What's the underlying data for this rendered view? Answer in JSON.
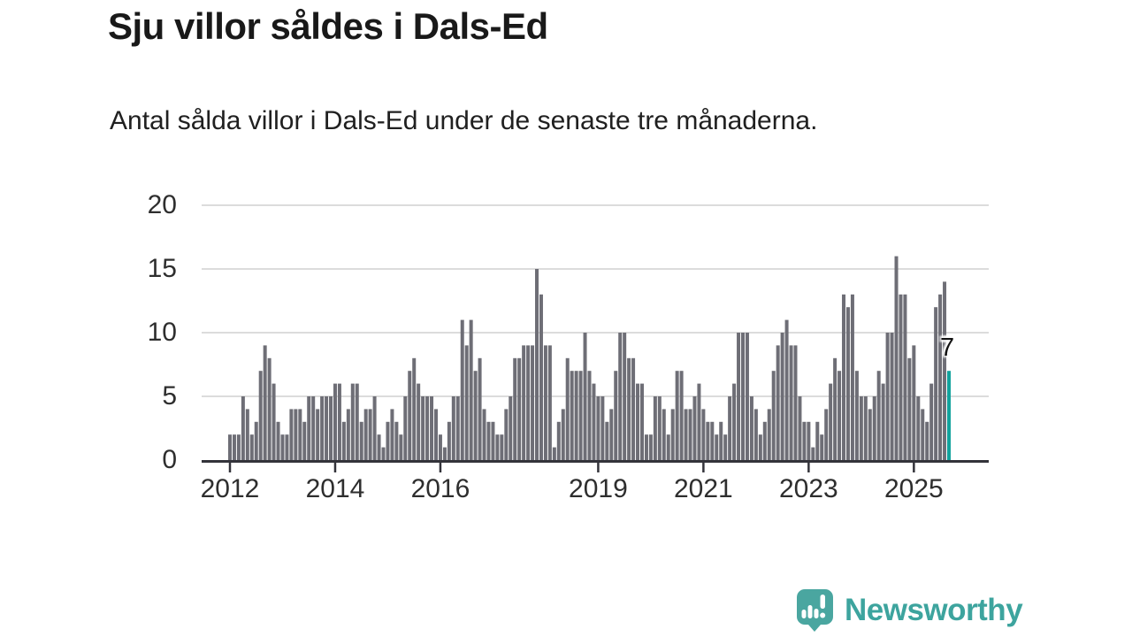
{
  "header": {
    "title": "Sju villor såldes i Dals-Ed",
    "subtitle": "Antal sålda villor i Dals-Ed under de senaste tre månaderna."
  },
  "chart_data": {
    "type": "bar",
    "title": "Sju villor såldes i Dals-Ed",
    "subtitle": "Antal sålda villor i Dals-Ed under de senaste tre månaderna.",
    "x_start": "2012-01",
    "x_end": "2025-09",
    "x_unit": "month",
    "values": [
      2,
      2,
      2,
      5,
      4,
      2,
      3,
      7,
      9,
      8,
      6,
      3,
      2,
      2,
      4,
      4,
      4,
      3,
      5,
      5,
      4,
      5,
      5,
      5,
      6,
      6,
      3,
      4,
      6,
      6,
      3,
      4,
      4,
      5,
      2,
      1,
      3,
      4,
      3,
      2,
      5,
      7,
      8,
      6,
      5,
      5,
      5,
      4,
      2,
      1,
      3,
      5,
      5,
      11,
      9,
      11,
      7,
      8,
      4,
      3,
      3,
      2,
      2,
      4,
      5,
      8,
      8,
      9,
      9,
      9,
      15,
      13,
      9,
      9,
      1,
      3,
      4,
      8,
      7,
      7,
      7,
      10,
      7,
      6,
      5,
      5,
      3,
      4,
      7,
      10,
      10,
      8,
      8,
      6,
      6,
      2,
      2,
      5,
      5,
      4,
      2,
      4,
      7,
      7,
      4,
      4,
      5,
      6,
      4,
      3,
      3,
      2,
      3,
      2,
      5,
      6,
      10,
      10,
      10,
      5,
      4,
      2,
      3,
      4,
      7,
      9,
      10,
      11,
      9,
      9,
      5,
      3,
      3,
      1,
      3,
      2,
      4,
      6,
      8,
      7,
      13,
      12,
      13,
      7,
      5,
      5,
      4,
      5,
      7,
      6,
      10,
      10,
      16,
      13,
      13,
      8,
      9,
      5,
      4,
      3,
      6,
      12,
      13,
      14,
      7
    ],
    "last_value_label": "7",
    "highlight_last": true,
    "bar_color": "#6e6e76",
    "highlight_color": "#12a29d",
    "yticks": [
      0,
      5,
      10,
      15,
      20
    ],
    "ylim": [
      0,
      20
    ],
    "xticks": [
      {
        "label": "2012",
        "month_index": 0
      },
      {
        "label": "2014",
        "month_index": 24
      },
      {
        "label": "2016",
        "month_index": 48
      },
      {
        "label": "2019",
        "month_index": 84
      },
      {
        "label": "2021",
        "month_index": 108
      },
      {
        "label": "2023",
        "month_index": 132
      },
      {
        "label": "2025",
        "month_index": 156
      }
    ],
    "grid": true,
    "legend": false,
    "grid_color": "#dcdcdc",
    "axis_color": "#33333a",
    "tick_label_color": "#2e2e2e"
  },
  "footer": {
    "brand": "Newsworthy",
    "logo_icon": "bar-chart-speech-bubble-icon",
    "brand_color": "#3da49e"
  }
}
